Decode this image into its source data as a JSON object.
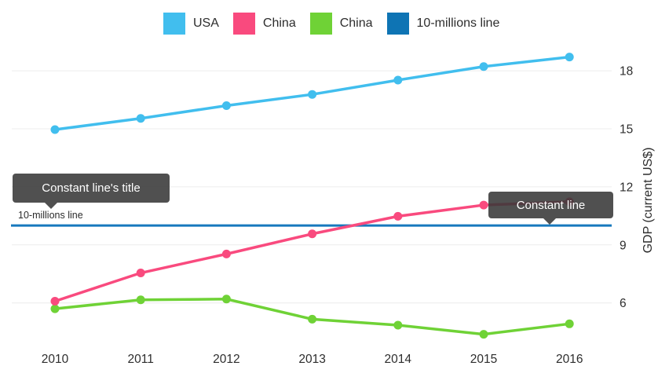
{
  "legend": {
    "items": [
      {
        "label": "USA",
        "color": "#41beee"
      },
      {
        "label": "China",
        "color": "#f94a7e"
      },
      {
        "label": "China",
        "color": "#6fd236"
      },
      {
        "label": "10-millions line",
        "color": "#0e74b4"
      }
    ]
  },
  "chart_data": {
    "type": "line",
    "x": [
      "2010",
      "2011",
      "2012",
      "2013",
      "2014",
      "2015",
      "2016"
    ],
    "series": [
      {
        "name": "USA",
        "color": "#41beee",
        "values": [
          14.96,
          15.54,
          16.2,
          16.78,
          17.52,
          18.22,
          18.71
        ]
      },
      {
        "name": "China",
        "color": "#f94a7e",
        "values": [
          6.09,
          7.55,
          8.53,
          9.57,
          10.48,
          11.06,
          11.23
        ]
      },
      {
        "name": "China",
        "color": "#6fd236",
        "values": [
          5.7,
          6.16,
          6.2,
          5.16,
          4.85,
          4.38,
          4.92
        ]
      }
    ],
    "constant_line": {
      "value": 10,
      "label": "10-millions line",
      "color": "#1779bd"
    },
    "title": "",
    "xlabel": "",
    "ylabel": "GDP (current US$)",
    "yticks": [
      6,
      9,
      12,
      15,
      18
    ],
    "ylim": [
      3.9,
      19.3
    ],
    "grid": "horizontal-only",
    "legend_position": "top"
  },
  "tooltips": [
    {
      "text": "Constant line's title"
    },
    {
      "text": "Constant line"
    }
  ],
  "colors": {
    "grid_line": "#ececec",
    "axis_text": "#2d2d2d",
    "tooltip_bg": "rgba(56,56,56,0.88)"
  }
}
